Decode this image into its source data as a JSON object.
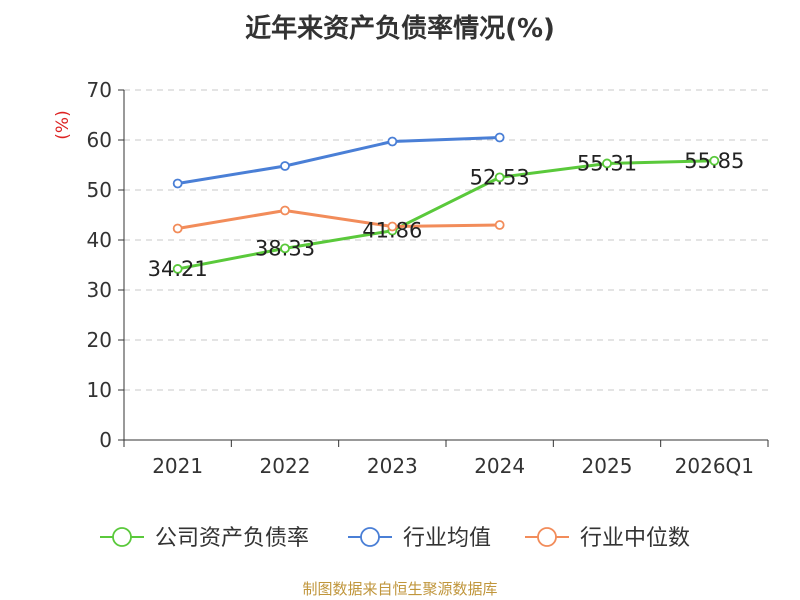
{
  "source_note": "制图数据来自恒生聚源数据库",
  "chart_data": {
    "type": "line",
    "title": "近年来资产负债率情况(%)",
    "ylabel": "(%)",
    "xlabel": "",
    "categories": [
      "2021",
      "2022",
      "2023",
      "2024",
      "2025",
      "2026Q1"
    ],
    "ylim": [
      0,
      70
    ],
    "yticks": [
      0,
      10,
      20,
      30,
      40,
      50,
      60,
      70
    ],
    "grid": true,
    "legend_position": "bottom",
    "series": [
      {
        "name": "公司资产负债率",
        "color": "#5ac93b",
        "values": [
          34.21,
          38.33,
          41.86,
          52.53,
          55.31,
          55.85
        ],
        "labels": [
          "34.21",
          "38.33",
          "41.86",
          "52.53",
          "55.31",
          "55.85"
        ]
      },
      {
        "name": "行业均值",
        "color": "#4a7fd6",
        "values": [
          51.3,
          54.8,
          59.7,
          60.5,
          null,
          null
        ]
      },
      {
        "name": "行业中位数",
        "color": "#f28c5a",
        "values": [
          42.3,
          45.9,
          42.7,
          43.0,
          null,
          null
        ]
      }
    ]
  }
}
